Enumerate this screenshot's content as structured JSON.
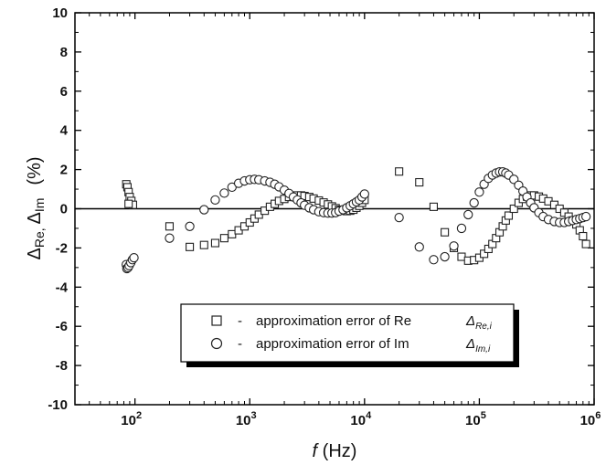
{
  "chart_data": {
    "type": "scatter",
    "title": "",
    "xlabel": {
      "italic": "f",
      "rest": " (Hz)"
    },
    "ylabel": {
      "delta1": "Δ",
      "part1": "Re, ",
      "delta2": "Δ",
      "part2": "Im",
      "unit": "(%)"
    },
    "xscale": "log",
    "xlim": [
      30,
      1000000
    ],
    "ylim": [
      -10,
      10
    ],
    "yticks": [
      -10,
      -8,
      -6,
      -4,
      -2,
      0,
      2,
      4,
      6,
      8,
      10
    ],
    "xticks": [
      {
        "value": 100,
        "base": "10",
        "exp": "2"
      },
      {
        "value": 1000,
        "base": "10",
        "exp": "3"
      },
      {
        "value": 10000,
        "base": "10",
        "exp": "4"
      },
      {
        "value": 100000,
        "base": "10",
        "exp": "5"
      },
      {
        "value": 1000000,
        "base": "10",
        "exp": "6"
      }
    ],
    "grid": false,
    "zero_line": true,
    "legend_position": "lower-center",
    "series": [
      {
        "name": "approximation error of Re",
        "symbol": "Δ",
        "subscript": "Re,i",
        "marker": "square",
        "points": [
          [
            84,
            1.25
          ],
          [
            86,
            1.1
          ],
          [
            88,
            0.85
          ],
          [
            90,
            0.6
          ],
          [
            93,
            0.4
          ],
          [
            96,
            0.2
          ],
          [
            88,
            0.25
          ],
          [
            200,
            -0.9
          ],
          [
            300,
            -1.95
          ],
          [
            400,
            -1.85
          ],
          [
            500,
            -1.75
          ],
          [
            600,
            -1.5
          ],
          [
            700,
            -1.3
          ],
          [
            800,
            -1.1
          ],
          [
            900,
            -0.9
          ],
          [
            1000,
            -0.7
          ],
          [
            1100,
            -0.5
          ],
          [
            1200,
            -0.3
          ],
          [
            1350,
            -0.1
          ],
          [
            1500,
            0.1
          ],
          [
            1650,
            0.25
          ],
          [
            1800,
            0.4
          ],
          [
            2000,
            0.5
          ],
          [
            2200,
            0.6
          ],
          [
            2400,
            0.65
          ],
          [
            2600,
            0.68
          ],
          [
            2800,
            0.68
          ],
          [
            3000,
            0.65
          ],
          [
            3300,
            0.6
          ],
          [
            3600,
            0.52
          ],
          [
            4000,
            0.42
          ],
          [
            4400,
            0.32
          ],
          [
            4800,
            0.22
          ],
          [
            5200,
            0.12
          ],
          [
            5600,
            0.03
          ],
          [
            6000,
            -0.05
          ],
          [
            6500,
            -0.1
          ],
          [
            7000,
            -0.12
          ],
          [
            7500,
            -0.1
          ],
          [
            8000,
            -0.05
          ],
          [
            8500,
            0.05
          ],
          [
            9000,
            0.15
          ],
          [
            9500,
            0.3
          ],
          [
            10000,
            0.45
          ],
          [
            20000,
            1.9
          ],
          [
            30000,
            1.35
          ],
          [
            40000,
            0.1
          ],
          [
            50000,
            -1.2
          ],
          [
            60000,
            -2.0
          ],
          [
            70000,
            -2.45
          ],
          [
            80000,
            -2.65
          ],
          [
            90000,
            -2.62
          ],
          [
            100000,
            -2.5
          ],
          [
            110000,
            -2.3
          ],
          [
            120000,
            -2.05
          ],
          [
            130000,
            -1.8
          ],
          [
            140000,
            -1.5
          ],
          [
            150000,
            -1.2
          ],
          [
            160000,
            -0.9
          ],
          [
            170000,
            -0.6
          ],
          [
            180000,
            -0.35
          ],
          [
            200000,
            0.0
          ],
          [
            220000,
            0.3
          ],
          [
            240000,
            0.5
          ],
          [
            260000,
            0.62
          ],
          [
            280000,
            0.68
          ],
          [
            300000,
            0.68
          ],
          [
            330000,
            0.62
          ],
          [
            360000,
            0.52
          ],
          [
            400000,
            0.38
          ],
          [
            450000,
            0.2
          ],
          [
            500000,
            0.0
          ],
          [
            550000,
            -0.2
          ],
          [
            600000,
            -0.4
          ],
          [
            650000,
            -0.6
          ],
          [
            700000,
            -0.8
          ],
          [
            750000,
            -1.1
          ],
          [
            800000,
            -1.4
          ],
          [
            850000,
            -1.8
          ]
        ]
      },
      {
        "name": "approximation error of Im",
        "symbol": "Δ",
        "subscript": "Im,i",
        "marker": "circle",
        "points": [
          [
            84,
            -2.85
          ],
          [
            85,
            -3.05
          ],
          [
            87,
            -3.0
          ],
          [
            89,
            -2.9
          ],
          [
            92,
            -2.75
          ],
          [
            95,
            -2.6
          ],
          [
            98,
            -2.5
          ],
          [
            200,
            -1.5
          ],
          [
            300,
            -0.9
          ],
          [
            400,
            -0.05
          ],
          [
            500,
            0.45
          ],
          [
            600,
            0.8
          ],
          [
            700,
            1.1
          ],
          [
            800,
            1.3
          ],
          [
            900,
            1.42
          ],
          [
            1000,
            1.48
          ],
          [
            1100,
            1.5
          ],
          [
            1200,
            1.48
          ],
          [
            1350,
            1.42
          ],
          [
            1500,
            1.35
          ],
          [
            1650,
            1.25
          ],
          [
            1800,
            1.12
          ],
          [
            2000,
            0.95
          ],
          [
            2200,
            0.78
          ],
          [
            2400,
            0.6
          ],
          [
            2600,
            0.45
          ],
          [
            2800,
            0.3
          ],
          [
            3000,
            0.18
          ],
          [
            3300,
            0.05
          ],
          [
            3600,
            -0.05
          ],
          [
            4000,
            -0.15
          ],
          [
            4400,
            -0.2
          ],
          [
            4800,
            -0.22
          ],
          [
            5200,
            -0.22
          ],
          [
            5600,
            -0.2
          ],
          [
            6000,
            -0.12
          ],
          [
            6500,
            -0.05
          ],
          [
            7000,
            0.05
          ],
          [
            7500,
            0.15
          ],
          [
            8000,
            0.25
          ],
          [
            8500,
            0.35
          ],
          [
            9000,
            0.45
          ],
          [
            9500,
            0.6
          ],
          [
            10000,
            0.75
          ],
          [
            20000,
            -0.45
          ],
          [
            30000,
            -1.95
          ],
          [
            40000,
            -2.6
          ],
          [
            50000,
            -2.45
          ],
          [
            60000,
            -1.9
          ],
          [
            70000,
            -1.0
          ],
          [
            80000,
            -0.3
          ],
          [
            90000,
            0.3
          ],
          [
            100000,
            0.85
          ],
          [
            110000,
            1.25
          ],
          [
            120000,
            1.55
          ],
          [
            130000,
            1.72
          ],
          [
            140000,
            1.82
          ],
          [
            150000,
            1.88
          ],
          [
            160000,
            1.88
          ],
          [
            170000,
            1.82
          ],
          [
            180000,
            1.72
          ],
          [
            200000,
            1.5
          ],
          [
            220000,
            1.2
          ],
          [
            240000,
            0.9
          ],
          [
            260000,
            0.6
          ],
          [
            280000,
            0.3
          ],
          [
            300000,
            0.05
          ],
          [
            330000,
            -0.2
          ],
          [
            360000,
            -0.4
          ],
          [
            400000,
            -0.55
          ],
          [
            450000,
            -0.65
          ],
          [
            500000,
            -0.7
          ],
          [
            550000,
            -0.7
          ],
          [
            600000,
            -0.65
          ],
          [
            650000,
            -0.6
          ],
          [
            700000,
            -0.55
          ],
          [
            750000,
            -0.5
          ],
          [
            800000,
            -0.45
          ],
          [
            850000,
            -0.4
          ]
        ]
      }
    ]
  }
}
